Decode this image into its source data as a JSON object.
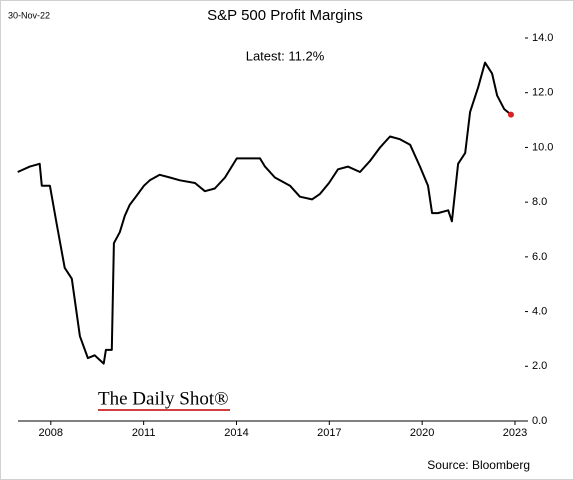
{
  "chart_data": {
    "type": "line",
    "title": "S&P 500 Profit Margins",
    "date_note": "30-Nov-22",
    "annotation": "Latest:  11.2%",
    "source": "Source: Bloomberg",
    "logo": "The Daily Shot®",
    "x": [
      2006.93,
      2007.32,
      2007.64,
      2007.71,
      2007.97,
      2008.19,
      2008.45,
      2008.68,
      2008.94,
      2009.2,
      2009.42,
      2009.71,
      2009.78,
      2009.97,
      2010.04,
      2010.23,
      2010.39,
      2010.55,
      2010.75,
      2011.01,
      2011.2,
      2011.52,
      2011.85,
      2012.17,
      2012.66,
      2012.98,
      2013.3,
      2013.63,
      2014.01,
      2014.43,
      2014.76,
      2014.92,
      2015.24,
      2015.73,
      2016.05,
      2016.44,
      2016.7,
      2016.99,
      2017.28,
      2017.6,
      2017.99,
      2018.31,
      2018.64,
      2018.96,
      2019.28,
      2019.61,
      2019.93,
      2020.19,
      2020.32,
      2020.51,
      2020.84,
      2020.96,
      2021.16,
      2021.39,
      2021.55,
      2021.81,
      2022.03,
      2022.26,
      2022.42,
      2022.65,
      2022.87
    ],
    "series": [
      {
        "name": "S&P 500 Profit Margins",
        "color": "#000000",
        "values": [
          9.1,
          9.3,
          9.4,
          8.6,
          8.6,
          7.2,
          5.6,
          5.2,
          3.1,
          2.3,
          2.4,
          2.1,
          2.6,
          2.6,
          6.5,
          6.9,
          7.5,
          7.9,
          8.2,
          8.6,
          8.8,
          9.0,
          8.9,
          8.8,
          8.7,
          8.4,
          8.5,
          8.9,
          9.6,
          9.6,
          9.6,
          9.3,
          8.9,
          8.6,
          8.2,
          8.1,
          8.3,
          8.7,
          9.2,
          9.3,
          9.1,
          9.5,
          10.0,
          10.4,
          10.3,
          10.1,
          9.3,
          8.6,
          7.6,
          7.6,
          7.7,
          7.3,
          9.4,
          9.8,
          11.3,
          12.2,
          13.1,
          12.7,
          11.9,
          11.4,
          11.2
        ]
      }
    ],
    "latest_color": "#e02020",
    "xlim": [
      2006.94,
      2023.42
    ],
    "xticks": [
      2008,
      2011,
      2014,
      2017,
      2020,
      2023
    ],
    "ylim": [
      0,
      14
    ],
    "yticks": [
      {
        "value": 0,
        "label": "0.0"
      },
      {
        "value": 2,
        "label": "2.0"
      },
      {
        "value": 4,
        "label": "4.0"
      },
      {
        "value": 6,
        "label": "6.0"
      },
      {
        "value": 8,
        "label": "8.0"
      },
      {
        "value": 10,
        "label": "10.0"
      },
      {
        "value": 12,
        "label": "12.0"
      },
      {
        "value": 14,
        "label": "14.0"
      }
    ],
    "grid": false
  }
}
